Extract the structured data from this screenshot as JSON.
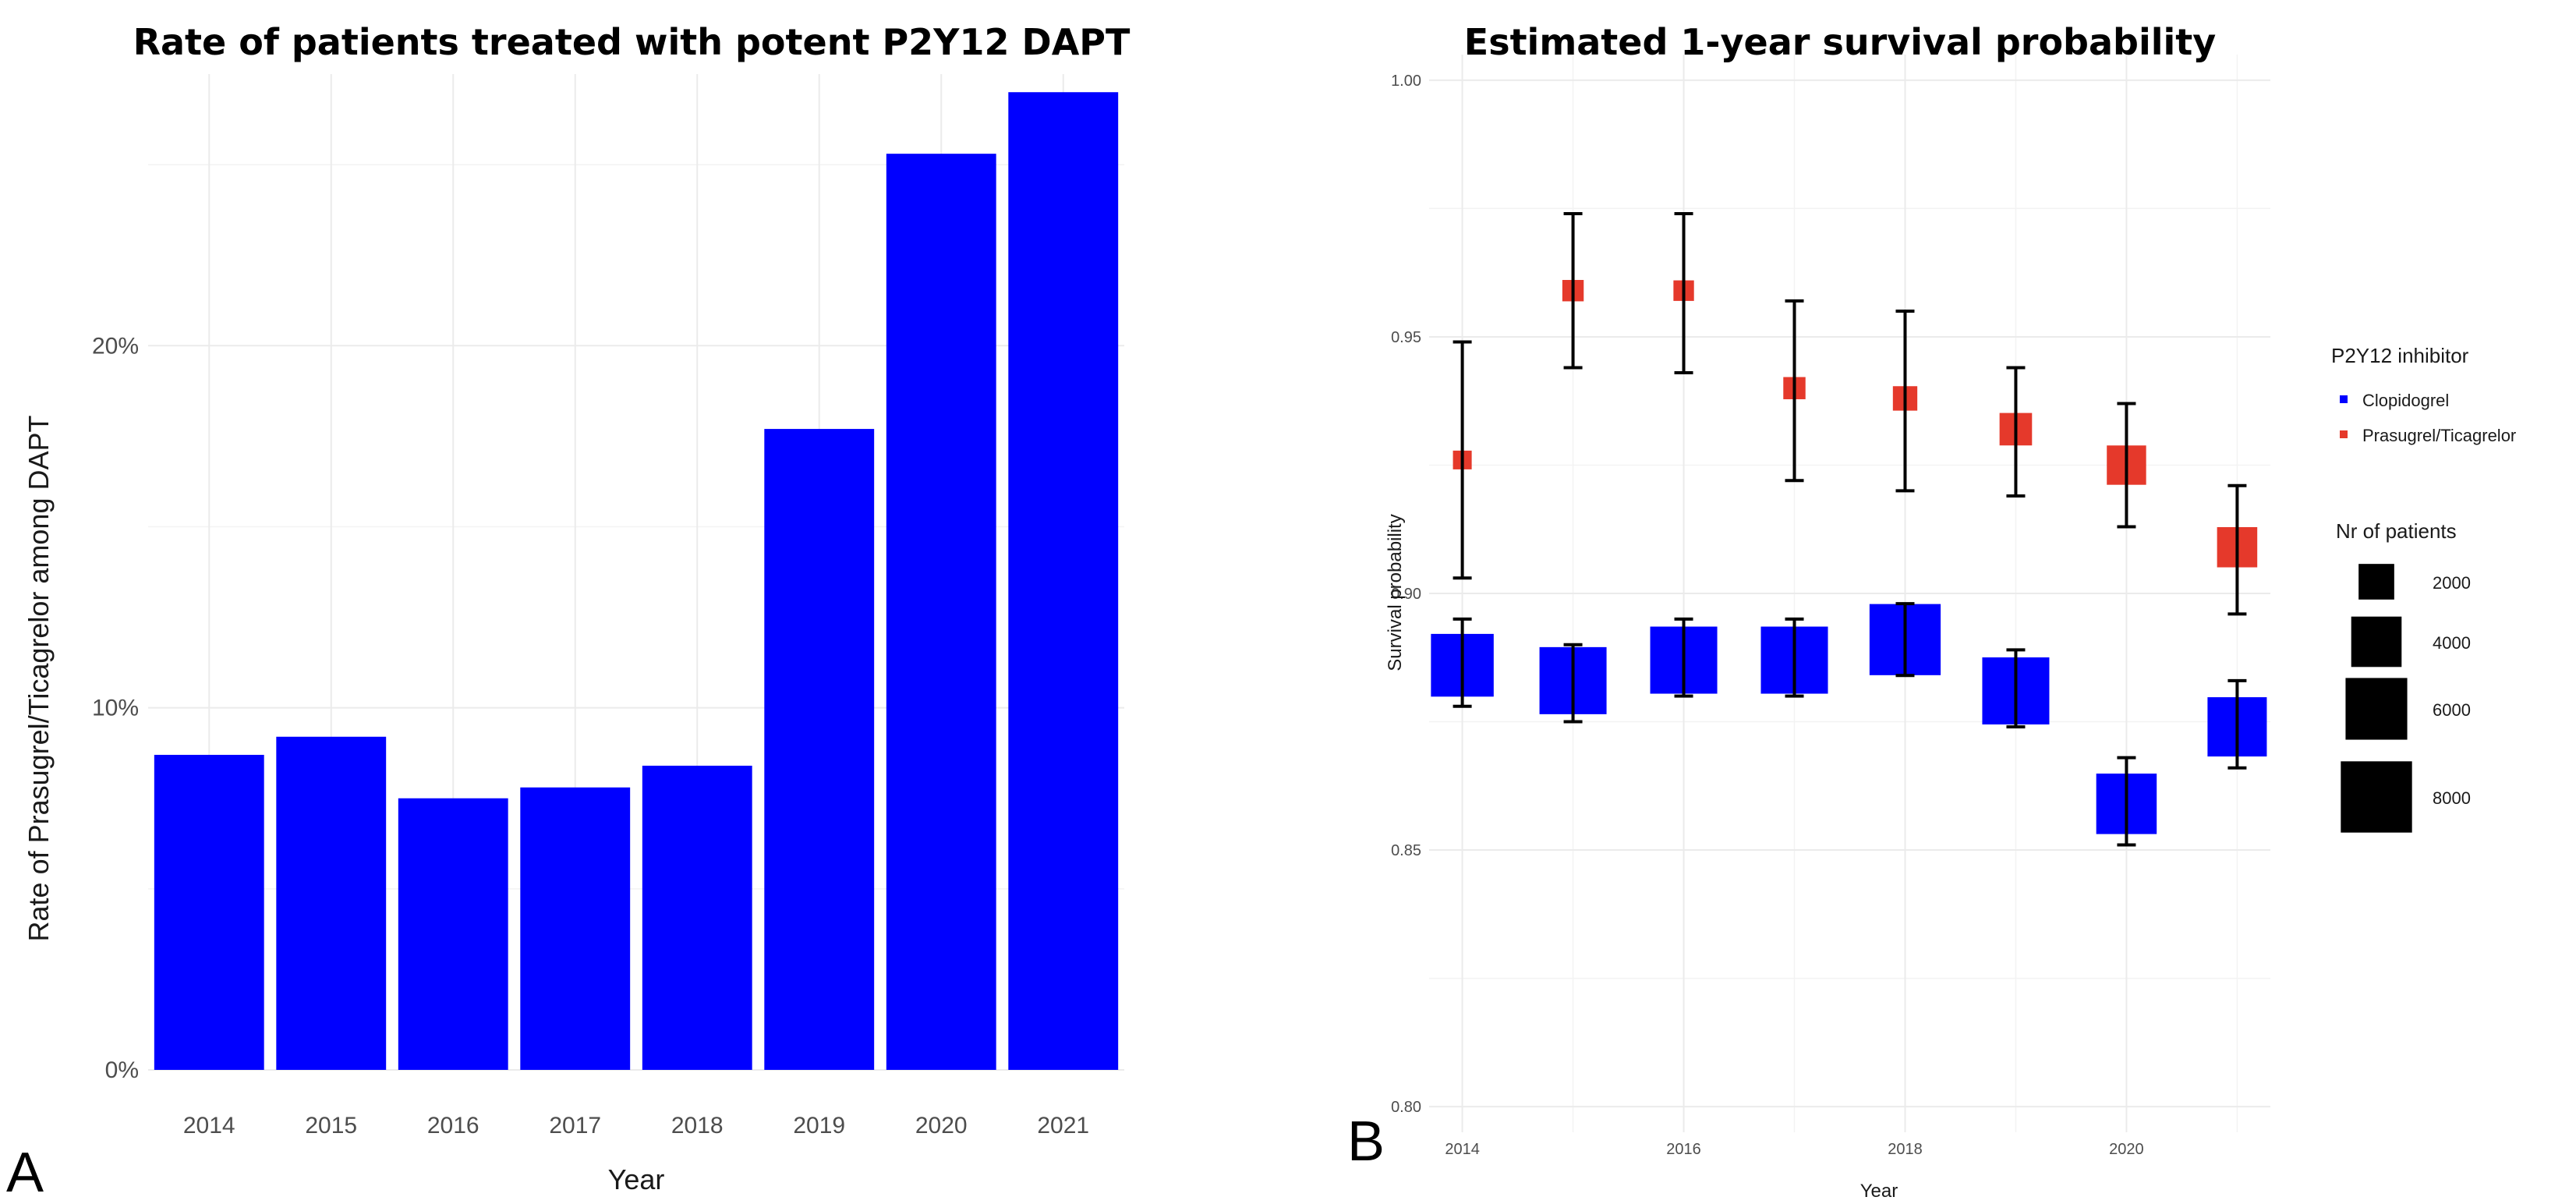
{
  "chart_data": [
    {
      "panel_label": "A",
      "type": "bar",
      "title": "Rate of patients treated with potent P2Y12 DAPT",
      "xlabel": "Year",
      "ylabel": "Rate of Prasugrel/Ticagrelor among DAPT",
      "categories": [
        "2014",
        "2015",
        "2016",
        "2017",
        "2018",
        "2019",
        "2020",
        "2021"
      ],
      "values": [
        8.7,
        9.2,
        7.5,
        7.8,
        8.4,
        17.7,
        25.3,
        27.0
      ],
      "ylim": [
        0,
        27.5
      ],
      "yticks": [
        0,
        10,
        20
      ],
      "ytick_labels": [
        "0%",
        "10%",
        "20%"
      ],
      "bar_color": "#0000ff",
      "grid": true
    },
    {
      "panel_label": "B",
      "type": "scatter",
      "title": "Estimated 1-year survival probability",
      "xlabel": "Year",
      "ylabel": "Survival probability",
      "xlim": [
        2013.7,
        2021.3
      ],
      "ylim": [
        0.795,
        1.005
      ],
      "xticks": [
        2014,
        2016,
        2018,
        2020
      ],
      "xtick_labels": [
        "2014",
        "2016",
        "2018",
        "2020"
      ],
      "yticks": [
        0.8,
        0.85,
        0.9,
        0.95,
        1.0
      ],
      "ytick_labels": [
        "0.80",
        "0.85",
        "0.90",
        "0.95",
        "1.00"
      ],
      "grid": true,
      "series": [
        {
          "name": "Clopidogrel",
          "color": "#0000ff",
          "x": [
            2014,
            2015,
            2016,
            2017,
            2018,
            2019,
            2020,
            2021
          ],
          "y": [
            0.886,
            0.883,
            0.887,
            0.887,
            0.891,
            0.881,
            0.859,
            0.874
          ],
          "lower": [
            0.878,
            0.875,
            0.88,
            0.88,
            0.884,
            0.874,
            0.851,
            0.866
          ],
          "upper": [
            0.895,
            0.89,
            0.895,
            0.895,
            0.898,
            0.889,
            0.868,
            0.883
          ],
          "n_patients": [
            5600,
            6400,
            6400,
            6400,
            7200,
            6400,
            5200,
            5000
          ]
        },
        {
          "name": "Prasugrel/Ticagrelor",
          "color": "#e5392b",
          "x": [
            2014,
            2015,
            2016,
            2017,
            2018,
            2019,
            2020,
            2021
          ],
          "y": [
            0.926,
            0.959,
            0.959,
            0.94,
            0.938,
            0.932,
            0.925,
            0.909
          ],
          "lower": [
            0.903,
            0.944,
            0.943,
            0.922,
            0.92,
            0.919,
            0.913,
            0.896
          ],
          "upper": [
            0.949,
            0.974,
            0.974,
            0.957,
            0.955,
            0.944,
            0.937,
            0.921
          ],
          "n_patients": [
            500,
            650,
            600,
            700,
            850,
            1500,
            2200,
            2300
          ]
        }
      ],
      "legend": {
        "position": "right",
        "color_title": "P2Y12 inhibitor",
        "color_items": [
          "Clopidogrel",
          "Prasugrel/Ticagrelor"
        ],
        "size_title": "Nr of patients",
        "size_values": [
          2000,
          4000,
          6000,
          8000
        ],
        "size_labels": [
          "2000",
          "4000",
          "6000",
          "8000"
        ]
      }
    }
  ]
}
